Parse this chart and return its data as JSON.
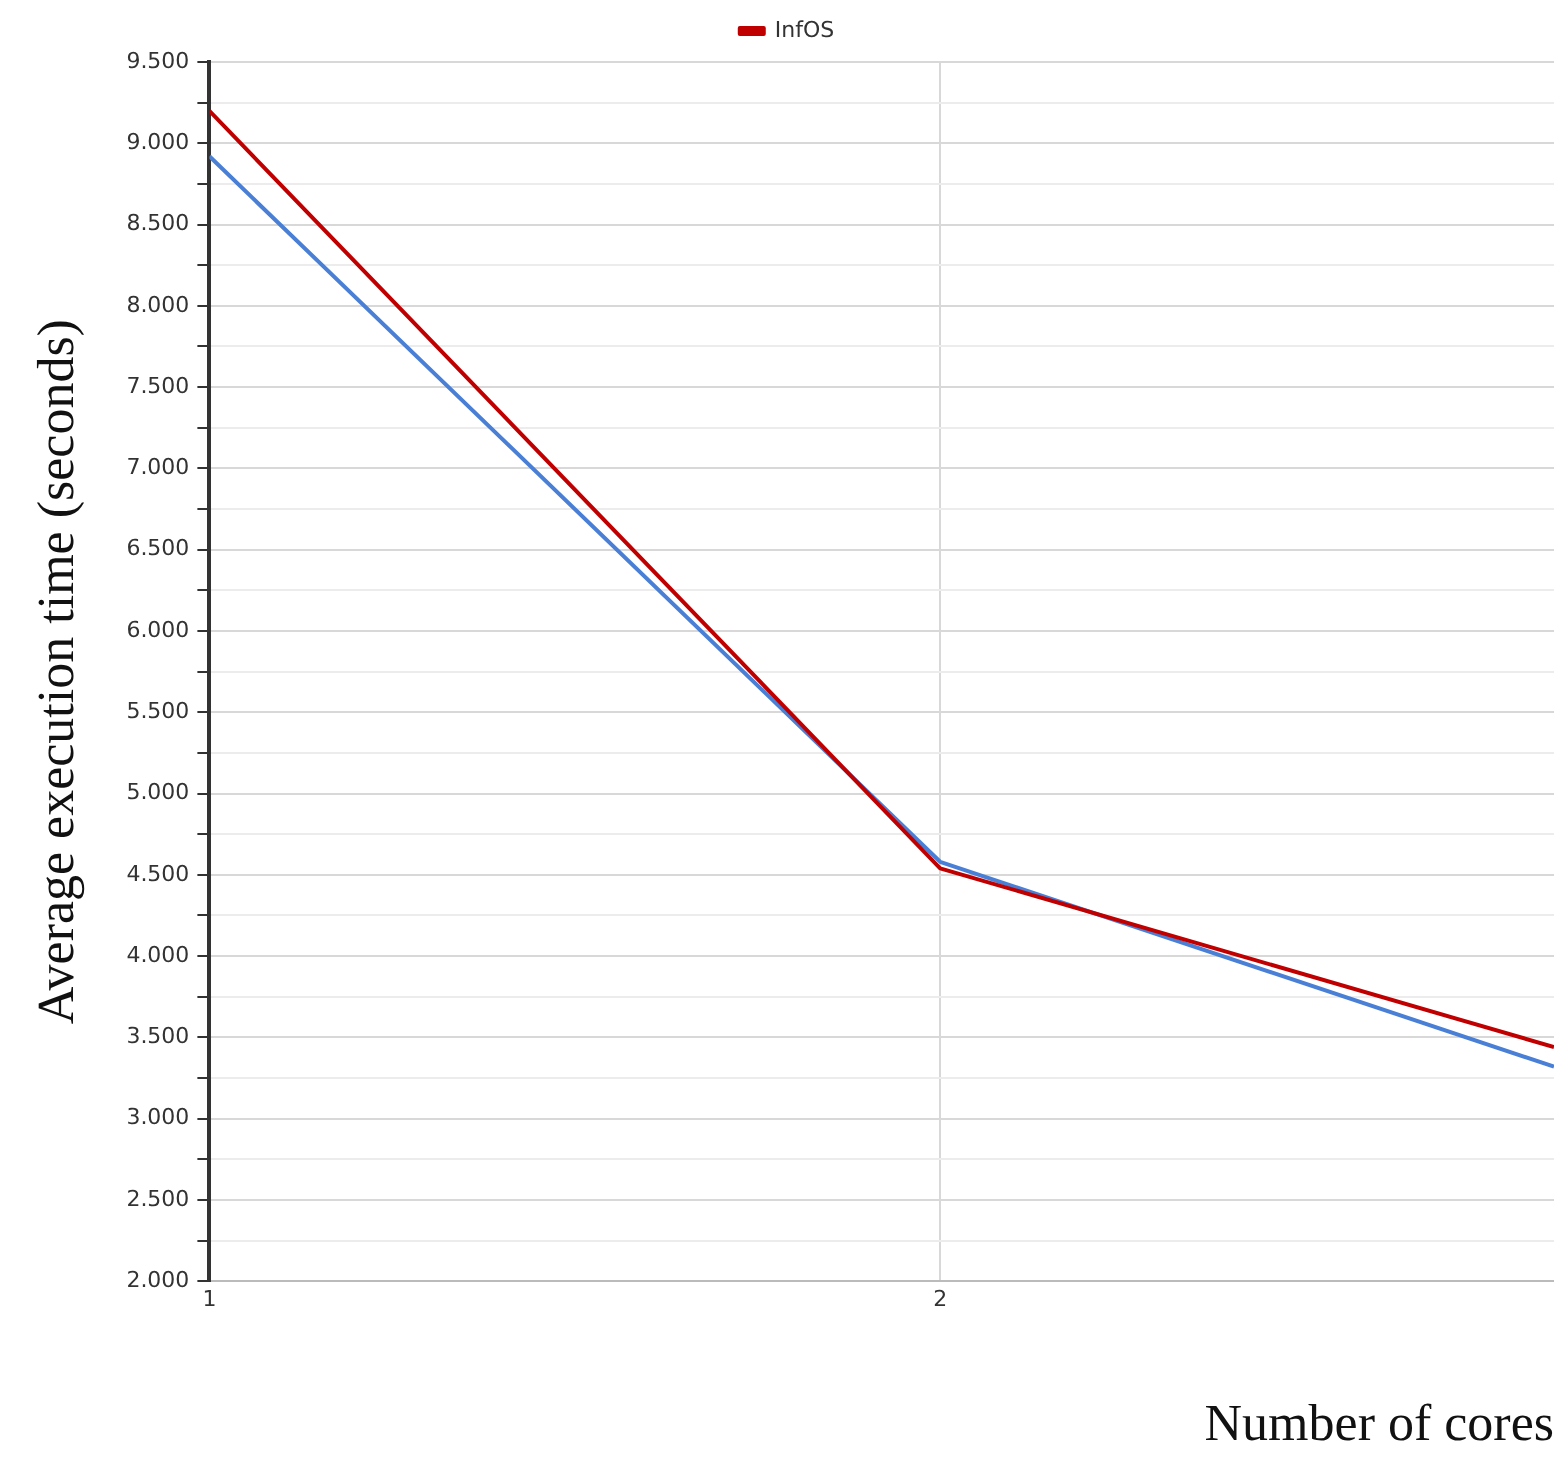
{
  "chart_data": {
    "type": "line",
    "xlabel": "Number of cores",
    "ylabel": "Average execution time (seconds)",
    "x": [
      1,
      2,
      2.84
    ],
    "series": [
      {
        "name": "InfOS",
        "color": "#c00000",
        "values": [
          9.2,
          4.54,
          3.44
        ]
      },
      {
        "color": "#4a7fd6",
        "values": [
          8.92,
          4.58,
          3.32
        ]
      }
    ],
    "xlim": [
      1,
      2.84
    ],
    "xticks": [
      1,
      2
    ],
    "ylim": [
      2,
      9.5
    ],
    "yticks": [
      {
        "value": 2,
        "label": "2.000"
      },
      {
        "value": 2.25,
        "label": null
      },
      {
        "value": 2.5,
        "label": "2.500"
      },
      {
        "value": 2.75,
        "label": null
      },
      {
        "value": 3,
        "label": "3.000"
      },
      {
        "value": 3.25,
        "label": null
      },
      {
        "value": 3.5,
        "label": "3.500"
      },
      {
        "value": 3.75,
        "label": null
      },
      {
        "value": 4,
        "label": "4.000"
      },
      {
        "value": 4.25,
        "label": null
      },
      {
        "value": 4.5,
        "label": "4.500"
      },
      {
        "value": 4.75,
        "label": null
      },
      {
        "value": 5,
        "label": "5.000"
      },
      {
        "value": 5.25,
        "label": null
      },
      {
        "value": 5.5,
        "label": "5.500"
      },
      {
        "value": 5.75,
        "label": null
      },
      {
        "value": 6,
        "label": "6.000"
      },
      {
        "value": 6.25,
        "label": null
      },
      {
        "value": 6.5,
        "label": "6.500"
      },
      {
        "value": 6.75,
        "label": null
      },
      {
        "value": 7,
        "label": "7.000"
      },
      {
        "value": 7.25,
        "label": null
      },
      {
        "value": 7.5,
        "label": "7.500"
      },
      {
        "value": 7.75,
        "label": null
      },
      {
        "value": 8,
        "label": "8.000"
      },
      {
        "value": 8.25,
        "label": null
      },
      {
        "value": 8.5,
        "label": "8.500"
      },
      {
        "value": 8.75,
        "label": null
      },
      {
        "value": 9,
        "label": "9.000"
      },
      {
        "value": 9.25,
        "label": null
      },
      {
        "value": 9.5,
        "label": "9.500"
      }
    ],
    "grid": true,
    "legend": "top",
    "marker": "none",
    "line_style": "solid"
  }
}
